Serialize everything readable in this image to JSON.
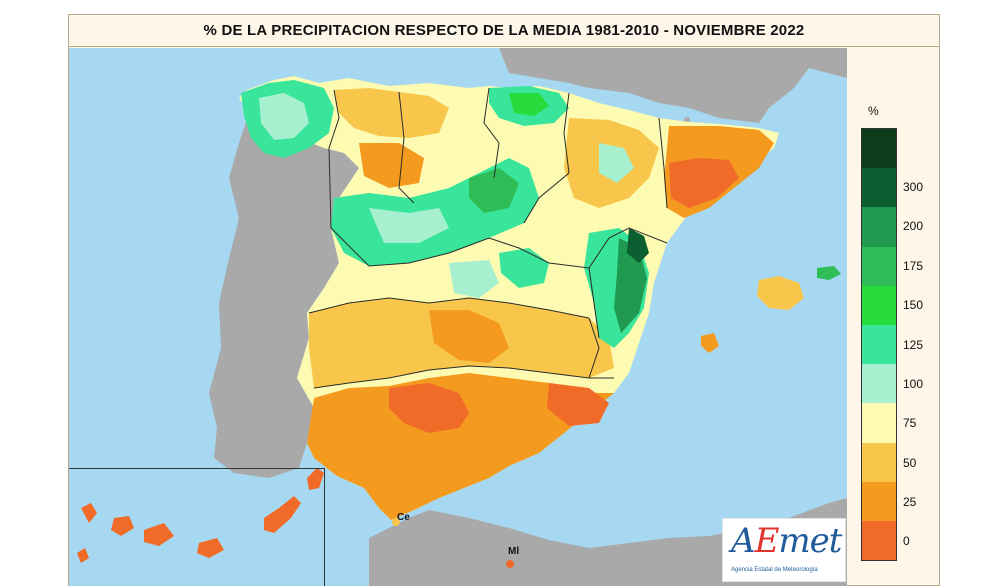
{
  "title": "% DE LA PRECIPITACION RESPECTO DE LA MEDIA 1981-2010 - NOVIEMBRE 2022",
  "legend": {
    "unit": "%",
    "classes": [
      {
        "label": "300",
        "color": "#0b5e2f"
      },
      {
        "label": "200",
        "color": "#1f9a50"
      },
      {
        "label": "175",
        "color": "#2fbd57"
      },
      {
        "label": "150",
        "color": "#27dc3c"
      },
      {
        "label": "125",
        "color": "#38e59a"
      },
      {
        "label": "100",
        "color": "#a7f0cf"
      },
      {
        "label": "75",
        "color": "#fdfbb2"
      },
      {
        "label": "50",
        "color": "#f7c64a"
      },
      {
        "label": "25",
        "color": "#f39a1f"
      },
      {
        "label": "0",
        "color": "#f06a28"
      }
    ],
    "extra_top_color": "#0b3d1d"
  },
  "colors": {
    "sea": "#a6d8f1",
    "foreign_land": "#a9a9a9",
    "very_dry": "#f06a28",
    "dry": "#f39a1f",
    "below_avg": "#f7c64a",
    "slightly_below": "#fdfbb2",
    "normal": "#a7f0cf",
    "wet": "#38e59a",
    "very_wet": "#27dc3c",
    "wetter": "#2fbd57",
    "wettest": "#1f9a50",
    "extreme": "#0b5e2f"
  },
  "cities": {
    "ceuta": "Ce",
    "melilla": "Ml"
  },
  "logo": {
    "name_prefix": "A",
    "name_accent": "E",
    "name_suffix": "met",
    "subtitle": "Agencia Estatal de Meteorología"
  }
}
